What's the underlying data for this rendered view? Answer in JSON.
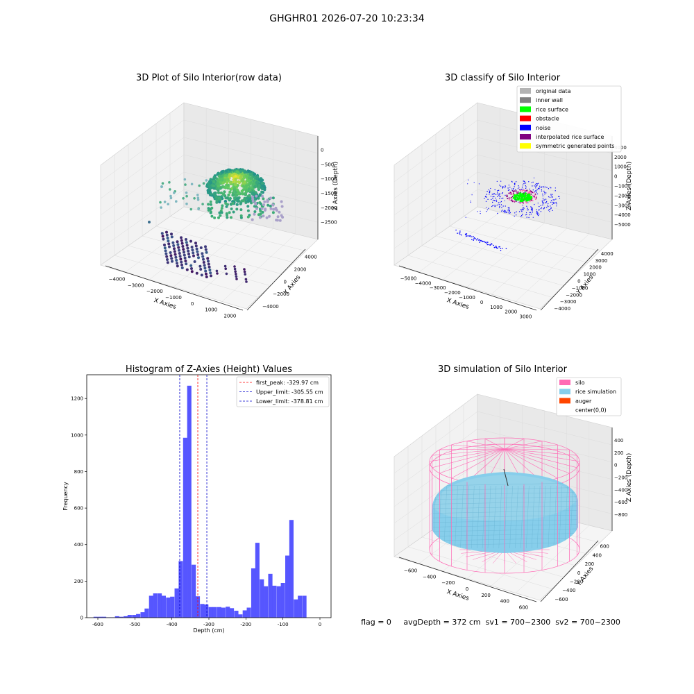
{
  "figure": {
    "suptitle": "GHGHR01 2026-07-20 10:23:34",
    "status_text": "flag = 0     avgDepth = 372 cm  sv1 = 700~2300  sv2 = 700~2300"
  },
  "colors": {
    "hist_bar": "#4d4dff",
    "first_peak": "#ff0000",
    "limits": "#0000cc",
    "silo": "#ff69b4",
    "rice_simulation": "#87ceeb",
    "auger": "#ff4500",
    "original_data": "#b3b3b3",
    "inner_wall": "#808080",
    "rice_surface": "#00ff00",
    "obstacle": "#ff0000",
    "noise": "#0000ff",
    "interpolated_rice_surface": "#800080",
    "symmetric_generated_points": "#ffff00"
  },
  "chart_data": [
    {
      "type": "scatter",
      "title": "3D Plot of Silo Interior(row data)",
      "xlabel": "X Axies",
      "ylabel": "Y Axies",
      "zlabel": "Z Axies (Depth)",
      "x_ticks": [
        "−4000",
        "−3000",
        "−2000",
        "−1000",
        "0",
        "1000",
        "2000"
      ],
      "y_ticks": [
        "−4000",
        "−2000",
        "0",
        "2000",
        "4000"
      ],
      "z_ticks": [
        "0",
        "−500",
        "−1000",
        "−1500",
        "−2000",
        "−2500"
      ]
    },
    {
      "type": "scatter",
      "title": "3D classify of Silo Interior",
      "xlabel": "X Axies",
      "ylabel": "Y Axies",
      "zlabel": "Z Axies (Depth)",
      "x_ticks": [
        "−5000",
        "−4000",
        "−3000",
        "−2000",
        "−1000",
        "0",
        "1000",
        "2000",
        "3000"
      ],
      "y_ticks": [
        "−4000",
        "−3000",
        "−2000",
        "−1000",
        "0",
        "1000",
        "2000",
        "3000",
        "4000"
      ],
      "z_ticks": [
        "3000",
        "2000",
        "1000",
        "0",
        "−1000",
        "−2000",
        "−3000",
        "−4000",
        "−5000"
      ],
      "legend": [
        "original data",
        "inner wall",
        "rice surface",
        "obstacle",
        "noise",
        "interpolated rice surface",
        "symmetric generated points"
      ]
    },
    {
      "type": "bar",
      "title": "Histogram of Z-Axies (Height) Values",
      "xlabel": "Depth (cm)",
      "ylabel": "Frequency",
      "xlim": [
        -630,
        30
      ],
      "ylim": [
        0,
        1330
      ],
      "x_ticks": [
        -600,
        -500,
        -400,
        -300,
        -200,
        -100,
        0
      ],
      "y_ticks": [
        0,
        200,
        400,
        600,
        800,
        1000,
        1200
      ],
      "bin_width": 11.5,
      "bins": [
        [
          -606,
          5
        ],
        [
          -594,
          5
        ],
        [
          -583,
          5
        ],
        [
          -571,
          2
        ],
        [
          -560,
          2
        ],
        [
          -548,
          8
        ],
        [
          -537,
          5
        ],
        [
          -525,
          8
        ],
        [
          -514,
          15
        ],
        [
          -502,
          15
        ],
        [
          -491,
          20
        ],
        [
          -479,
          30
        ],
        [
          -468,
          50
        ],
        [
          -456,
          120
        ],
        [
          -445,
          133
        ],
        [
          -433,
          133
        ],
        [
          -422,
          120
        ],
        [
          -410,
          110
        ],
        [
          -399,
          115
        ],
        [
          -387,
          160
        ],
        [
          -376,
          310
        ],
        [
          -364,
          985
        ],
        [
          -353,
          1270
        ],
        [
          -341,
          290
        ],
        [
          -330,
          117
        ],
        [
          -318,
          75
        ],
        [
          -307,
          72
        ],
        [
          -295,
          58
        ],
        [
          -284,
          58
        ],
        [
          -272,
          58
        ],
        [
          -261,
          55
        ],
        [
          -249,
          60
        ],
        [
          -238,
          52
        ],
        [
          -226,
          38
        ],
        [
          -215,
          18
        ],
        [
          -203,
          40
        ],
        [
          -192,
          55
        ],
        [
          -180,
          270
        ],
        [
          -169,
          410
        ],
        [
          -157,
          210
        ],
        [
          -146,
          172
        ],
        [
          -134,
          240
        ],
        [
          -123,
          175
        ],
        [
          -111,
          172
        ],
        [
          -100,
          190
        ],
        [
          -88,
          340
        ],
        [
          -77,
          535
        ],
        [
          -65,
          100
        ],
        [
          -54,
          120
        ],
        [
          -42,
          120
        ]
      ],
      "vlines": [
        {
          "name": "first_peak: -329.97 cm",
          "x": -329.97,
          "color": "#ff0000"
        },
        {
          "name": "Upper_limit: -305.55 cm",
          "x": -305.55,
          "color": "#0000cc"
        },
        {
          "name": "Lower_limit: -378.81 cm",
          "x": -378.81,
          "color": "#0000cc"
        }
      ]
    },
    {
      "type": "area",
      "title": "3D simulation of Silo Interior",
      "xlabel": "X Axies",
      "ylabel": "Y Axies",
      "zlabel": "Z Axies (Depth)",
      "x_ticks": [
        "−600",
        "−400",
        "−200",
        "0",
        "200",
        "400",
        "600"
      ],
      "y_ticks": [
        "−600",
        "−400",
        "−200",
        "0",
        "200",
        "400",
        "600"
      ],
      "z_ticks": [
        "400",
        "200",
        "0",
        "−200",
        "−400",
        "−600",
        "−800"
      ],
      "legend": [
        "silo",
        "rice simulation",
        "auger",
        "center(0,0)"
      ]
    }
  ]
}
